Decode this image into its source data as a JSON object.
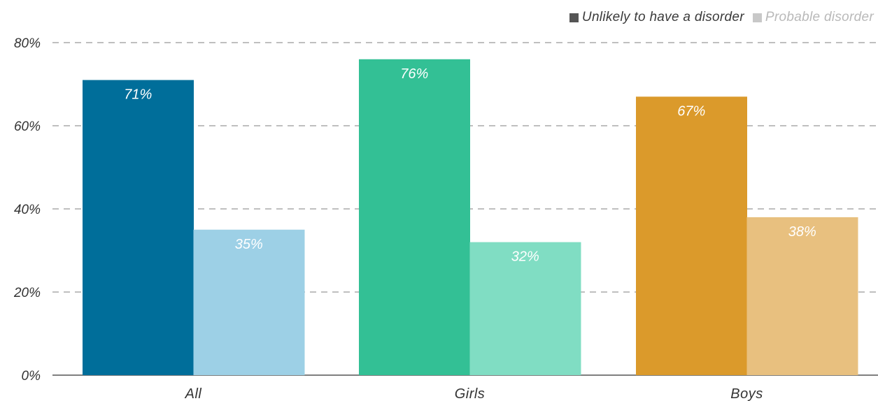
{
  "chart_data": {
    "type": "bar",
    "title": "",
    "xlabel": "",
    "ylabel": "",
    "categories": [
      "All",
      "Girls",
      "Boys"
    ],
    "series": [
      {
        "name": "Unlikely to have a disorder",
        "values": [
          71,
          76,
          67
        ],
        "labels": [
          "71%",
          "76%",
          "67%"
        ]
      },
      {
        "name": "Probable disorder",
        "values": [
          35,
          32,
          38
        ],
        "labels": [
          "35%",
          "32%",
          "38%"
        ]
      }
    ],
    "ylim": [
      0,
      80
    ],
    "yticks": [
      0,
      20,
      40,
      60,
      80
    ],
    "ytick_labels": [
      "0%",
      "20%",
      "40%",
      "60%",
      "80%"
    ],
    "grid": "dashed horizontal",
    "legend_position": "top-right",
    "colors": {
      "series1": [
        "#006e9a",
        "#33c095",
        "#db9a2b"
      ],
      "series2": [
        "#9dd0e6",
        "#80ddc3",
        "#e8c07f"
      ],
      "legend_series1": "#555555",
      "legend_series2": "#c8c8c8",
      "gridline": "#aaaaaa",
      "axis": "#555555"
    }
  }
}
